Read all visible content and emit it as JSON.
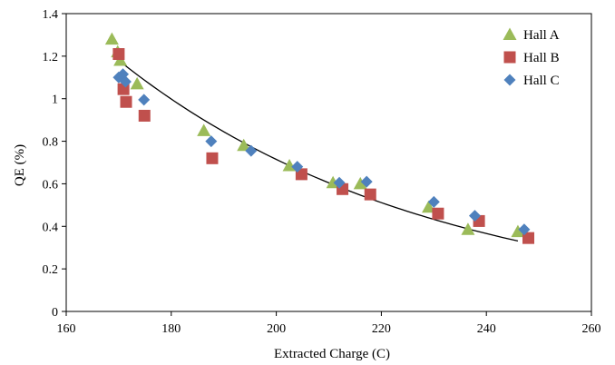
{
  "chart_data": {
    "type": "scatter",
    "xlabel": "Extracted Charge (C)",
    "ylabel": "QE (%)",
    "xlim": [
      160,
      260
    ],
    "ylim": [
      0,
      1.4
    ],
    "x_ticks": [
      160,
      180,
      200,
      220,
      240,
      260
    ],
    "y_ticks": [
      0,
      0.2,
      0.4,
      0.6,
      0.8,
      1,
      1.2,
      1.4
    ],
    "x_tick_labels": [
      "160",
      "180",
      "200",
      "220",
      "240",
      "260"
    ],
    "y_tick_labels": [
      "0",
      "0.2",
      "0.4",
      "0.6",
      "0.8",
      "1",
      "1.2",
      "1.4"
    ],
    "grid": false,
    "legend_position": "top-right",
    "series": [
      {
        "name": "Hall A",
        "marker": "triangle",
        "color": "#9bbb59",
        "points": [
          [
            168.7,
            1.28
          ],
          [
            169.8,
            1.22
          ],
          [
            170.3,
            1.18
          ],
          [
            173.5,
            1.07
          ],
          [
            186.2,
            0.85
          ],
          [
            193.8,
            0.78
          ],
          [
            202.5,
            0.685
          ],
          [
            210.8,
            0.605
          ],
          [
            216.0,
            0.6
          ],
          [
            229.0,
            0.49
          ],
          [
            236.5,
            0.385
          ],
          [
            246.0,
            0.375
          ]
        ]
      },
      {
        "name": "Hall B",
        "marker": "square",
        "color": "#c0504d",
        "points": [
          [
            170.0,
            1.21
          ],
          [
            170.9,
            1.045
          ],
          [
            171.4,
            0.985
          ],
          [
            174.9,
            0.92
          ],
          [
            187.8,
            0.72
          ],
          [
            204.8,
            0.645
          ],
          [
            212.6,
            0.575
          ],
          [
            217.9,
            0.55
          ],
          [
            230.8,
            0.46
          ],
          [
            238.6,
            0.425
          ],
          [
            248.0,
            0.345
          ]
        ]
      },
      {
        "name": "Hall C",
        "marker": "diamond",
        "color": "#4f81bd",
        "points": [
          [
            170.0,
            1.1
          ],
          [
            170.8,
            1.115
          ],
          [
            171.3,
            1.08
          ],
          [
            174.8,
            0.995
          ],
          [
            187.6,
            0.8
          ],
          [
            195.2,
            0.755
          ],
          [
            204.0,
            0.68
          ],
          [
            212.0,
            0.605
          ],
          [
            217.2,
            0.61
          ],
          [
            230.0,
            0.515
          ],
          [
            237.8,
            0.45
          ],
          [
            247.2,
            0.385
          ]
        ]
      }
    ],
    "trendline": {
      "type": "power-fit",
      "color": "#000000",
      "x_range": [
        169,
        246
      ],
      "coef_a": 1.2,
      "exponent_b": -0.01672
    }
  }
}
